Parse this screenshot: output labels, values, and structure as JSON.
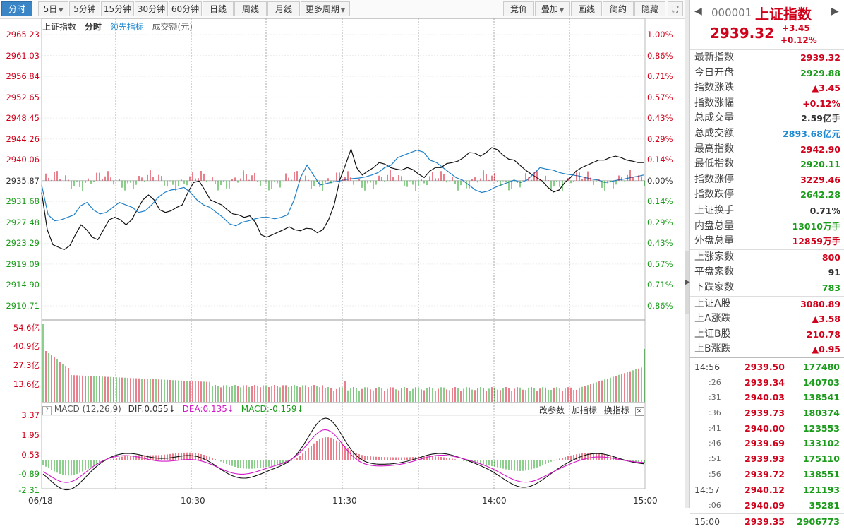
{
  "toolbar": {
    "periods": [
      "分时",
      "5日",
      "5分钟",
      "15分钟",
      "30分钟",
      "60分钟",
      "日线",
      "周线",
      "月线",
      "更多周期"
    ],
    "right": [
      "竞价",
      "叠加",
      "画线",
      "简约",
      "隐藏"
    ]
  },
  "legend": {
    "index": "上证指数",
    "mode": "分时",
    "lead": "领先指标",
    "amount": "成交额(元)"
  },
  "price_axis": {
    "left": [
      "2965.23",
      "2961.03",
      "2956.84",
      "2952.65",
      "2948.45",
      "2944.26",
      "2940.06",
      "2935.87",
      "2931.68",
      "2927.48",
      "2923.29",
      "2919.09",
      "2914.90",
      "2910.71"
    ],
    "right": [
      "1.00%",
      "0.86%",
      "0.71%",
      "0.57%",
      "0.43%",
      "0.29%",
      "0.14%",
      "0.00%",
      "0.14%",
      "0.29%",
      "0.43%",
      "0.57%",
      "0.71%",
      "0.86%"
    ]
  },
  "volume_axis": [
    "54.6亿",
    "40.9亿",
    "27.3亿",
    "13.6亿"
  ],
  "macd": {
    "title": "MACD (12,26,9)",
    "dif": "DIF:0.055↓",
    "dea": "DEA:0.135↓",
    "macd": "MACD:-0.159↓",
    "btn_params": "改参数",
    "btn_add": "加指标",
    "btn_swap": "换指标",
    "btn_close": "×",
    "axis": [
      "3.37",
      "1.95",
      "0.53",
      "-0.89",
      "-2.31"
    ]
  },
  "x_labels": [
    "06/18",
    "10:30",
    "11:30",
    "14:00",
    "15:00"
  ],
  "quote": {
    "code": "000001",
    "name": "上证指数",
    "price": "2939.32",
    "change": "+3.45",
    "pct": "+0.12%",
    "rows1": [
      {
        "k": "最新指数",
        "v": "2939.32",
        "c": "red"
      },
      {
        "k": "今日开盘",
        "v": "2929.88",
        "c": "green"
      },
      {
        "k": "指数涨跌",
        "v": "▲3.45",
        "c": "red"
      },
      {
        "k": "指数涨幅",
        "v": "+0.12%",
        "c": "red"
      },
      {
        "k": "总成交量",
        "v": "2.59亿手",
        "c": "blk"
      },
      {
        "k": "总成交额",
        "v": "2893.68亿元",
        "c": "blue"
      },
      {
        "k": "最高指数",
        "v": "2942.90",
        "c": "red"
      },
      {
        "k": "最低指数",
        "v": "2920.11",
        "c": "green"
      },
      {
        "k": "指数涨停",
        "v": "3229.46",
        "c": "red"
      },
      {
        "k": "指数跌停",
        "v": "2642.28",
        "c": "green"
      }
    ],
    "rows2": [
      {
        "k": "上证换手",
        "v": "0.71%",
        "c": "blk"
      },
      {
        "k": "内盘总量",
        "v": "13010万手",
        "c": "green"
      },
      {
        "k": "外盘总量",
        "v": "12859万手",
        "c": "red"
      }
    ],
    "rows3": [
      {
        "k": "上涨家数",
        "v": "800",
        "c": "red"
      },
      {
        "k": "平盘家数",
        "v": "91",
        "c": "blk"
      },
      {
        "k": "下跌家数",
        "v": "783",
        "c": "green"
      }
    ],
    "rows4": [
      {
        "k": "上证A股",
        "v": "3080.89",
        "c": "red"
      },
      {
        "k": "上A涨跌",
        "v": "▲3.58",
        "c": "red"
      },
      {
        "k": "上证B股",
        "v": "210.78",
        "c": "red"
      },
      {
        "k": "上B涨跌",
        "v": "▲0.95",
        "c": "red"
      }
    ],
    "ticks": [
      {
        "t": "14:56",
        "p": "2939.50",
        "v": "177480",
        "c": "red",
        "grp": true
      },
      {
        "t": ":26",
        "p": "2939.34",
        "v": "140703",
        "c": "red"
      },
      {
        "t": ":31",
        "p": "2940.03",
        "v": "138541",
        "c": "red"
      },
      {
        "t": ":36",
        "p": "2939.73",
        "v": "180374",
        "c": "red"
      },
      {
        "t": ":41",
        "p": "2940.00",
        "v": "123553",
        "c": "red"
      },
      {
        "t": ":46",
        "p": "2939.69",
        "v": "133102",
        "c": "red"
      },
      {
        "t": ":51",
        "p": "2939.93",
        "v": "175110",
        "c": "red"
      },
      {
        "t": ":56",
        "p": "2939.72",
        "v": "138551",
        "c": "red"
      },
      {
        "t": "14:57",
        "p": "2940.12",
        "v": "121193",
        "c": "red",
        "grp": true
      },
      {
        "t": ":06",
        "p": "2940.09",
        "v": "35281",
        "c": "red"
      },
      {
        "t": "15:00",
        "p": "2939.35",
        "v": "2906773",
        "c": "red",
        "grp": true
      }
    ]
  },
  "chart_data": {
    "type": "line",
    "title": "上证指数 分时",
    "prev_close": 2935.87,
    "ylim": [
      2910.71,
      2965.23
    ],
    "x_labels": [
      "06/18",
      "10:30",
      "11:30",
      "14:00",
      "15:00"
    ],
    "series": [
      {
        "name": "上证指数",
        "color": "#111111",
        "values": [
          2933.5,
          2926,
          2923,
          2922.5,
          2922,
          2922.8,
          2925,
          2927,
          2926,
          2924.5,
          2924,
          2926,
          2928,
          2928.5,
          2928,
          2927,
          2928,
          2930,
          2932,
          2933,
          2932,
          2930,
          2929.5,
          2929.8,
          2930.5,
          2931,
          2933.5,
          2935.5,
          2935.8,
          2934,
          2932,
          2931.5,
          2931,
          2930,
          2929.2,
          2929,
          2928.5,
          2928.8,
          2927.5,
          2925,
          2924.5,
          2925,
          2925.5,
          2926,
          2926.6,
          2926,
          2925.8,
          2926.3,
          2926.2,
          2925.4,
          2926,
          2928,
          2931,
          2936,
          2939,
          2942.2,
          2938.5,
          2937,
          2937.8,
          2938.5,
          2939.5,
          2939.2,
          2938.5,
          2938.2,
          2938,
          2938.5,
          2938.1,
          2937.2,
          2936.5,
          2937.8,
          2938.5,
          2938.5,
          2939.3,
          2939.5,
          2939.8,
          2940.5,
          2941.5,
          2941.4,
          2940.8,
          2941.5,
          2942.5,
          2942.1,
          2941,
          2940.2,
          2940,
          2939,
          2938,
          2937.2,
          2936.5,
          2935.8,
          2934.5,
          2933.6,
          2934,
          2935.5,
          2936.5,
          2937.8,
          2938.5,
          2939,
          2939.5,
          2940,
          2940,
          2940.5,
          2940.8,
          2940.5,
          2940,
          2939.8,
          2939.5,
          2939.5
        ]
      },
      {
        "name": "领先指标",
        "color": "#1e7fc8",
        "values": [
          2935,
          2929,
          2927.8,
          2928,
          2928.5,
          2929,
          2930.8,
          2931.5,
          2930,
          2929.2,
          2929.5,
          2930.5,
          2931.5,
          2931,
          2930.5,
          2929.5,
          2929.8,
          2931,
          2932.5,
          2933.5,
          2934,
          2934.2,
          2934.5,
          2933.5,
          2932,
          2931,
          2930.5,
          2929.5,
          2928.5,
          2927.2,
          2926.8,
          2927.5,
          2927.8,
          2928.2,
          2928.5,
          2928.5,
          2928.2,
          2928.5,
          2929,
          2932,
          2936.5,
          2939,
          2937,
          2935,
          2935.3,
          2935.6,
          2935.8,
          2936.1,
          2936.3,
          2936.4,
          2936.6,
          2937,
          2937.5,
          2938.5,
          2939,
          2940.5,
          2941,
          2941.5,
          2942,
          2941.6,
          2940,
          2939.5,
          2938.5,
          2937.5,
          2936.5,
          2936,
          2935,
          2934,
          2933.5,
          2933.8,
          2934.5,
          2935,
          2935.5,
          2936,
          2935.5,
          2936,
          2937.2,
          2938.5,
          2938.2,
          2938,
          2937.5,
          2937.2,
          2937,
          2936.8,
          2936.5,
          2936.2,
          2936,
          2935.5,
          2935.7,
          2936,
          2936.2,
          2936.5,
          2936.7,
          2937
        ]
      }
    ]
  }
}
